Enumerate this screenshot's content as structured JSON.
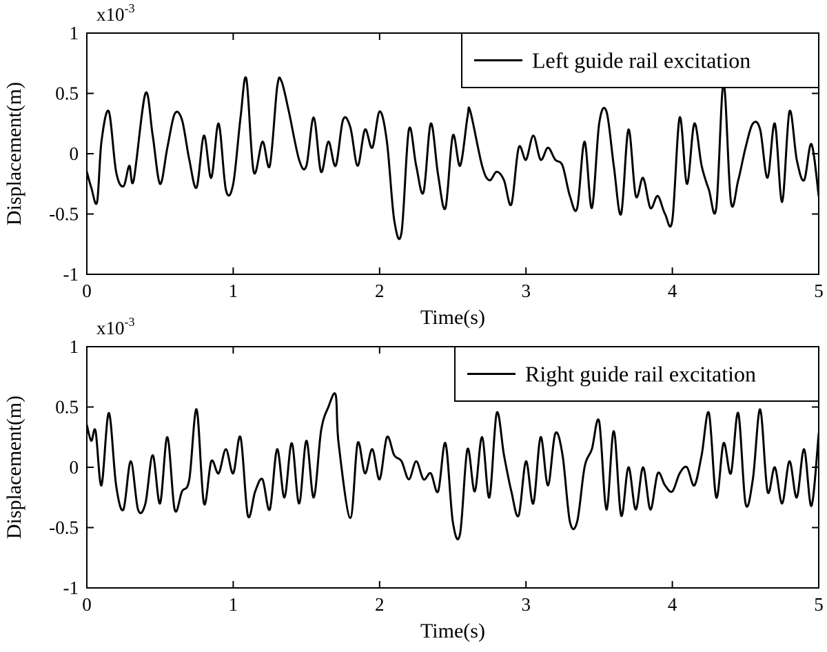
{
  "chart_data": [
    {
      "type": "line",
      "scale_label": "x10",
      "scale_exponent": "-3",
      "xlabel": "Time(s)",
      "ylabel": "Displacement(m)",
      "xlim": [
        0,
        5
      ],
      "ylim": [
        -1,
        1
      ],
      "xticks": [
        "0",
        "1",
        "2",
        "3",
        "4",
        "5"
      ],
      "yticks": [
        "1",
        "0.5",
        "0",
        "-0.5",
        "-1"
      ],
      "legend_position": "top-right",
      "grid": false,
      "line_color": "#000000",
      "series": [
        {
          "name": "Left guide rail excitation",
          "x": [
            0,
            0.03,
            0.07,
            0.1,
            0.15,
            0.2,
            0.25,
            0.29,
            0.32,
            0.4,
            0.45,
            0.5,
            0.55,
            0.6,
            0.65,
            0.7,
            0.75,
            0.8,
            0.85,
            0.9,
            0.95,
            1.0,
            1.05,
            1.09,
            1.14,
            1.2,
            1.25,
            1.3,
            1.33,
            1.38,
            1.45,
            1.5,
            1.55,
            1.6,
            1.65,
            1.7,
            1.75,
            1.8,
            1.85,
            1.9,
            1.95,
            2.0,
            2.05,
            2.1,
            2.15,
            2.2,
            2.25,
            2.3,
            2.35,
            2.4,
            2.45,
            2.5,
            2.55,
            2.6,
            2.62,
            2.7,
            2.75,
            2.8,
            2.85,
            2.9,
            2.95,
            3.0,
            3.05,
            3.1,
            3.15,
            3.2,
            3.25,
            3.3,
            3.35,
            3.4,
            3.45,
            3.5,
            3.55,
            3.6,
            3.65,
            3.7,
            3.75,
            3.8,
            3.85,
            3.9,
            3.95,
            4.0,
            4.05,
            4.1,
            4.15,
            4.2,
            4.25,
            4.3,
            4.35,
            4.4,
            4.45,
            4.5,
            4.55,
            4.6,
            4.65,
            4.7,
            4.75,
            4.8,
            4.85,
            4.9,
            4.95,
            5.0
          ],
          "y": [
            -0.15,
            -0.28,
            -0.4,
            0.1,
            0.35,
            -0.15,
            -0.27,
            -0.1,
            -0.22,
            0.5,
            0.15,
            -0.25,
            0.05,
            0.33,
            0.28,
            -0.05,
            -0.28,
            0.15,
            -0.2,
            0.25,
            -0.3,
            -0.25,
            0.3,
            0.62,
            -0.15,
            0.1,
            -0.1,
            0.55,
            0.6,
            0.35,
            -0.05,
            -0.1,
            0.3,
            -0.15,
            0.1,
            -0.1,
            0.28,
            0.22,
            -0.1,
            0.2,
            0.05,
            0.35,
            0.1,
            -0.55,
            -0.65,
            0.2,
            -0.1,
            -0.32,
            0.25,
            -0.18,
            -0.45,
            0.15,
            -0.1,
            0.3,
            0.35,
            -0.1,
            -0.22,
            -0.15,
            -0.22,
            -0.42,
            0.05,
            -0.05,
            0.15,
            -0.05,
            0.05,
            -0.05,
            -0.1,
            -0.35,
            -0.45,
            0.1,
            -0.45,
            0.25,
            0.35,
            -0.1,
            -0.5,
            0.2,
            -0.35,
            -0.2,
            -0.45,
            -0.35,
            -0.5,
            -0.55,
            0.3,
            -0.25,
            0.25,
            -0.1,
            -0.3,
            -0.45,
            0.58,
            -0.4,
            -0.22,
            0.05,
            0.25,
            0.2,
            -0.2,
            0.25,
            -0.4,
            0.35,
            -0.05,
            -0.22,
            0.08,
            -0.35
          ]
        }
      ]
    },
    {
      "type": "line",
      "scale_label": "x10",
      "scale_exponent": "-3",
      "xlabel": "Time(s)",
      "ylabel": "Displacement(m)",
      "xlim": [
        0,
        5
      ],
      "ylim": [
        -1,
        1
      ],
      "xticks": [
        "0",
        "1",
        "2",
        "3",
        "4",
        "5"
      ],
      "yticks": [
        "1",
        "0.5",
        "0",
        "-0.5",
        "-1"
      ],
      "legend_position": "top-right",
      "grid": false,
      "line_color": "#000000",
      "series": [
        {
          "name": "Right guide rail excitation",
          "x": [
            0,
            0.03,
            0.06,
            0.1,
            0.15,
            0.2,
            0.25,
            0.3,
            0.35,
            0.4,
            0.45,
            0.5,
            0.55,
            0.6,
            0.65,
            0.7,
            0.75,
            0.8,
            0.85,
            0.9,
            0.95,
            1.0,
            1.05,
            1.1,
            1.15,
            1.2,
            1.25,
            1.3,
            1.35,
            1.4,
            1.45,
            1.5,
            1.55,
            1.6,
            1.65,
            1.7,
            1.72,
            1.8,
            1.85,
            1.9,
            1.95,
            2.0,
            2.05,
            2.1,
            2.15,
            2.2,
            2.25,
            2.3,
            2.35,
            2.4,
            2.45,
            2.5,
            2.55,
            2.6,
            2.65,
            2.7,
            2.75,
            2.8,
            2.85,
            2.9,
            2.95,
            3.0,
            3.05,
            3.1,
            3.15,
            3.2,
            3.25,
            3.3,
            3.35,
            3.4,
            3.45,
            3.5,
            3.55,
            3.6,
            3.65,
            3.7,
            3.75,
            3.8,
            3.85,
            3.9,
            3.95,
            4.0,
            4.05,
            4.1,
            4.15,
            4.2,
            4.25,
            4.3,
            4.35,
            4.4,
            4.45,
            4.5,
            4.55,
            4.6,
            4.65,
            4.7,
            4.75,
            4.8,
            4.85,
            4.9,
            4.95,
            5.0
          ],
          "y": [
            0.35,
            0.22,
            0.3,
            -0.15,
            0.45,
            -0.15,
            -0.35,
            0.05,
            -0.35,
            -0.3,
            0.1,
            -0.3,
            0.25,
            -0.35,
            -0.2,
            -0.1,
            0.48,
            -0.3,
            0.05,
            -0.05,
            0.15,
            -0.05,
            0.25,
            -0.4,
            -0.2,
            -0.1,
            -0.35,
            0.15,
            -0.25,
            0.2,
            -0.3,
            0.22,
            -0.25,
            0.3,
            0.5,
            0.6,
            0.2,
            -0.42,
            0.2,
            -0.05,
            0.15,
            -0.1,
            0.25,
            0.1,
            0.05,
            -0.1,
            0.05,
            -0.1,
            -0.05,
            -0.2,
            0.2,
            -0.45,
            -0.55,
            0.15,
            -0.2,
            0.25,
            -0.25,
            0.45,
            0.1,
            -0.2,
            -0.4,
            0.05,
            -0.3,
            0.25,
            -0.15,
            0.28,
            0.1,
            -0.45,
            -0.45,
            0.0,
            0.15,
            0.38,
            -0.35,
            0.3,
            -0.4,
            0.0,
            -0.35,
            0.0,
            -0.35,
            -0.05,
            -0.15,
            -0.2,
            -0.05,
            0.0,
            -0.15,
            0.1,
            0.45,
            -0.25,
            0.2,
            -0.05,
            0.45,
            -0.3,
            -0.1,
            0.48,
            -0.2,
            0.0,
            -0.3,
            0.05,
            -0.25,
            0.15,
            -0.32,
            0.28
          ]
        }
      ]
    }
  ]
}
